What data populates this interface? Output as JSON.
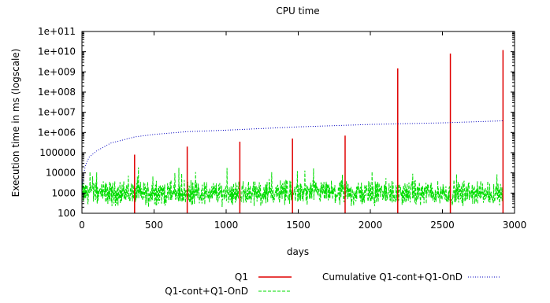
{
  "chart_data": {
    "type": "line",
    "title": "CPU time",
    "xlabel": "days",
    "ylabel": "Execution time in ms (logscale)",
    "xlim": [
      0,
      3000
    ],
    "ylim": [
      100,
      100000000000
    ],
    "yscale": "log",
    "grid": false,
    "legend_position": "bottom",
    "x_ticks": [
      0,
      500,
      1000,
      1500,
      2000,
      2500,
      3000
    ],
    "x_tick_labels": [
      "0",
      "500",
      "1000",
      "1500",
      "2000",
      "2500",
      "3000"
    ],
    "y_ticks": [
      100,
      1000,
      10000,
      100000,
      1000000,
      10000000,
      100000000,
      1000000000,
      10000000000,
      100000000000
    ],
    "y_tick_labels": [
      "100",
      "1000",
      "10000",
      "100000",
      "1e+006",
      "1e+007",
      "1e+008",
      "1e+009",
      "1e+010",
      "1e+011"
    ],
    "series": [
      {
        "name": "Q1",
        "color": "#e00000",
        "style": "solid impulses",
        "x": [
          365,
          730,
          1095,
          1460,
          1825,
          2190,
          2555,
          2920
        ],
        "y": [
          80000,
          200000,
          350000,
          500000,
          700000,
          1500000000,
          8000000000,
          12000000000
        ]
      },
      {
        "name": "Cumulative Q1-cont+Q1-OnD",
        "color": "#0000c0",
        "style": "dotted",
        "x": [
          0,
          10,
          25,
          50,
          100,
          200,
          365,
          500,
          730,
          1000,
          1500,
          2000,
          2500,
          2920
        ],
        "y": [
          2000,
          8000,
          25000,
          60000,
          120000,
          300000,
          600000,
          800000,
          1100000,
          1300000,
          1900000,
          2500000,
          3000000,
          3800000
        ]
      },
      {
        "name": "Q1-cont+Q1-OnD",
        "color": "#00dd00",
        "style": "dashed",
        "x_range": [
          0,
          2920
        ],
        "typical_value": 1000,
        "typical_range": [
          300,
          3000
        ],
        "spike_max": 20000
      }
    ]
  }
}
